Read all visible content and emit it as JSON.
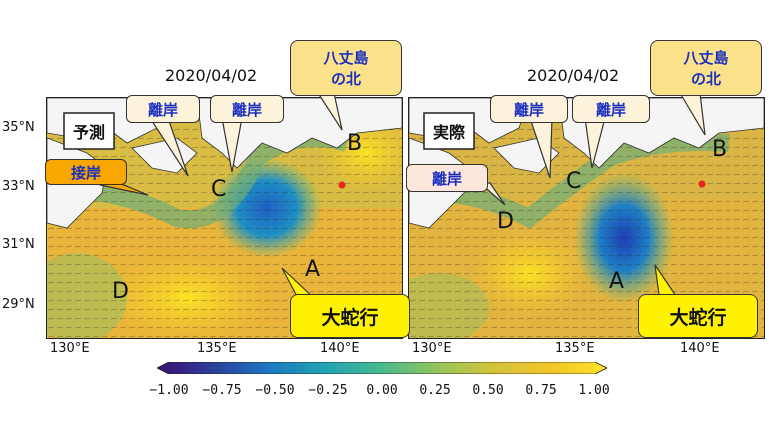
{
  "panels": [
    {
      "date": "2020/04/02",
      "label": "予測",
      "callouts": {
        "coast_near": "接岸",
        "offshore1": "離岸",
        "offshore2": "離岸",
        "north_hachijo": "八丈島\nの北",
        "large_meander": "大蛇行"
      },
      "markers": [
        "A",
        "B",
        "C",
        "D"
      ]
    },
    {
      "date": "2020/04/02",
      "label": "実際",
      "callouts": {
        "coast_off_left": "離岸",
        "offshore1": "離岸",
        "offshore2": "離岸",
        "north_hachijo": "八丈島\nの北",
        "large_meander": "大蛇行"
      },
      "markers": [
        "A",
        "B",
        "C",
        "D"
      ]
    }
  ],
  "lat_ticks": [
    "35°N",
    "33°N",
    "31°N",
    "29°N"
  ],
  "lon_ticks_left": [
    "130°E",
    "135°E",
    "140°E"
  ],
  "lon_ticks_right": [
    "130°E",
    "135°E",
    "140°E"
  ],
  "colorbar": {
    "ticks": [
      "−1.00",
      "−0.75",
      "−0.50",
      "−0.25",
      "0.00",
      "0.25",
      "0.50",
      "0.75",
      "1.00"
    ],
    "colors": [
      "#3b0f70",
      "#2c3f9a",
      "#1f77c4",
      "#20a3b4",
      "#49b88c",
      "#94c45a",
      "#d6c33a",
      "#f4c52a",
      "#fbe325"
    ]
  }
}
